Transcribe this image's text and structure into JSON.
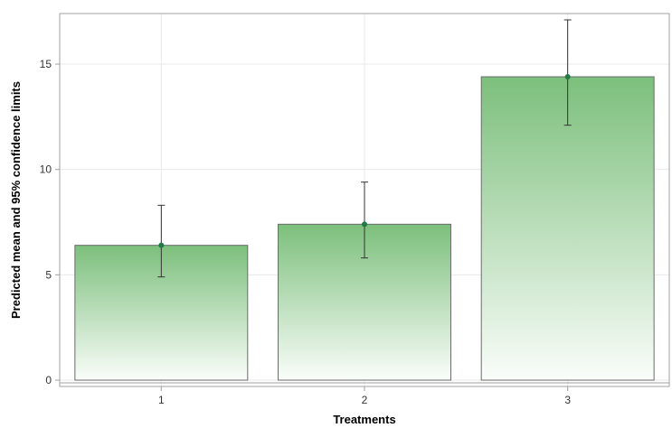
{
  "chart_data": {
    "type": "bar",
    "title": "",
    "xlabel": "Treatments",
    "ylabel": "Predicted mean and 95% confidence limits",
    "categories": [
      "1",
      "2",
      "3"
    ],
    "values": [
      6.4,
      7.4,
      14.4
    ],
    "error_lower": [
      4.9,
      5.8,
      12.1
    ],
    "error_upper": [
      8.3,
      9.4,
      17.1
    ],
    "ylim": [
      -0.3,
      17.4
    ],
    "yticks": [
      0,
      5,
      10,
      15
    ],
    "ytick_labels": [
      "0",
      "5",
      "10",
      "15"
    ],
    "grid": true,
    "legend": "none",
    "colors": {
      "bar_top": "#7cbf7c",
      "bar_bottom": "#fafdfa",
      "bar_edge": "#6b6b6b",
      "marker": "#1f7a43",
      "errorbar": "#333333",
      "grid": "#e8e8e8",
      "frame": "#a0a0a0"
    }
  }
}
